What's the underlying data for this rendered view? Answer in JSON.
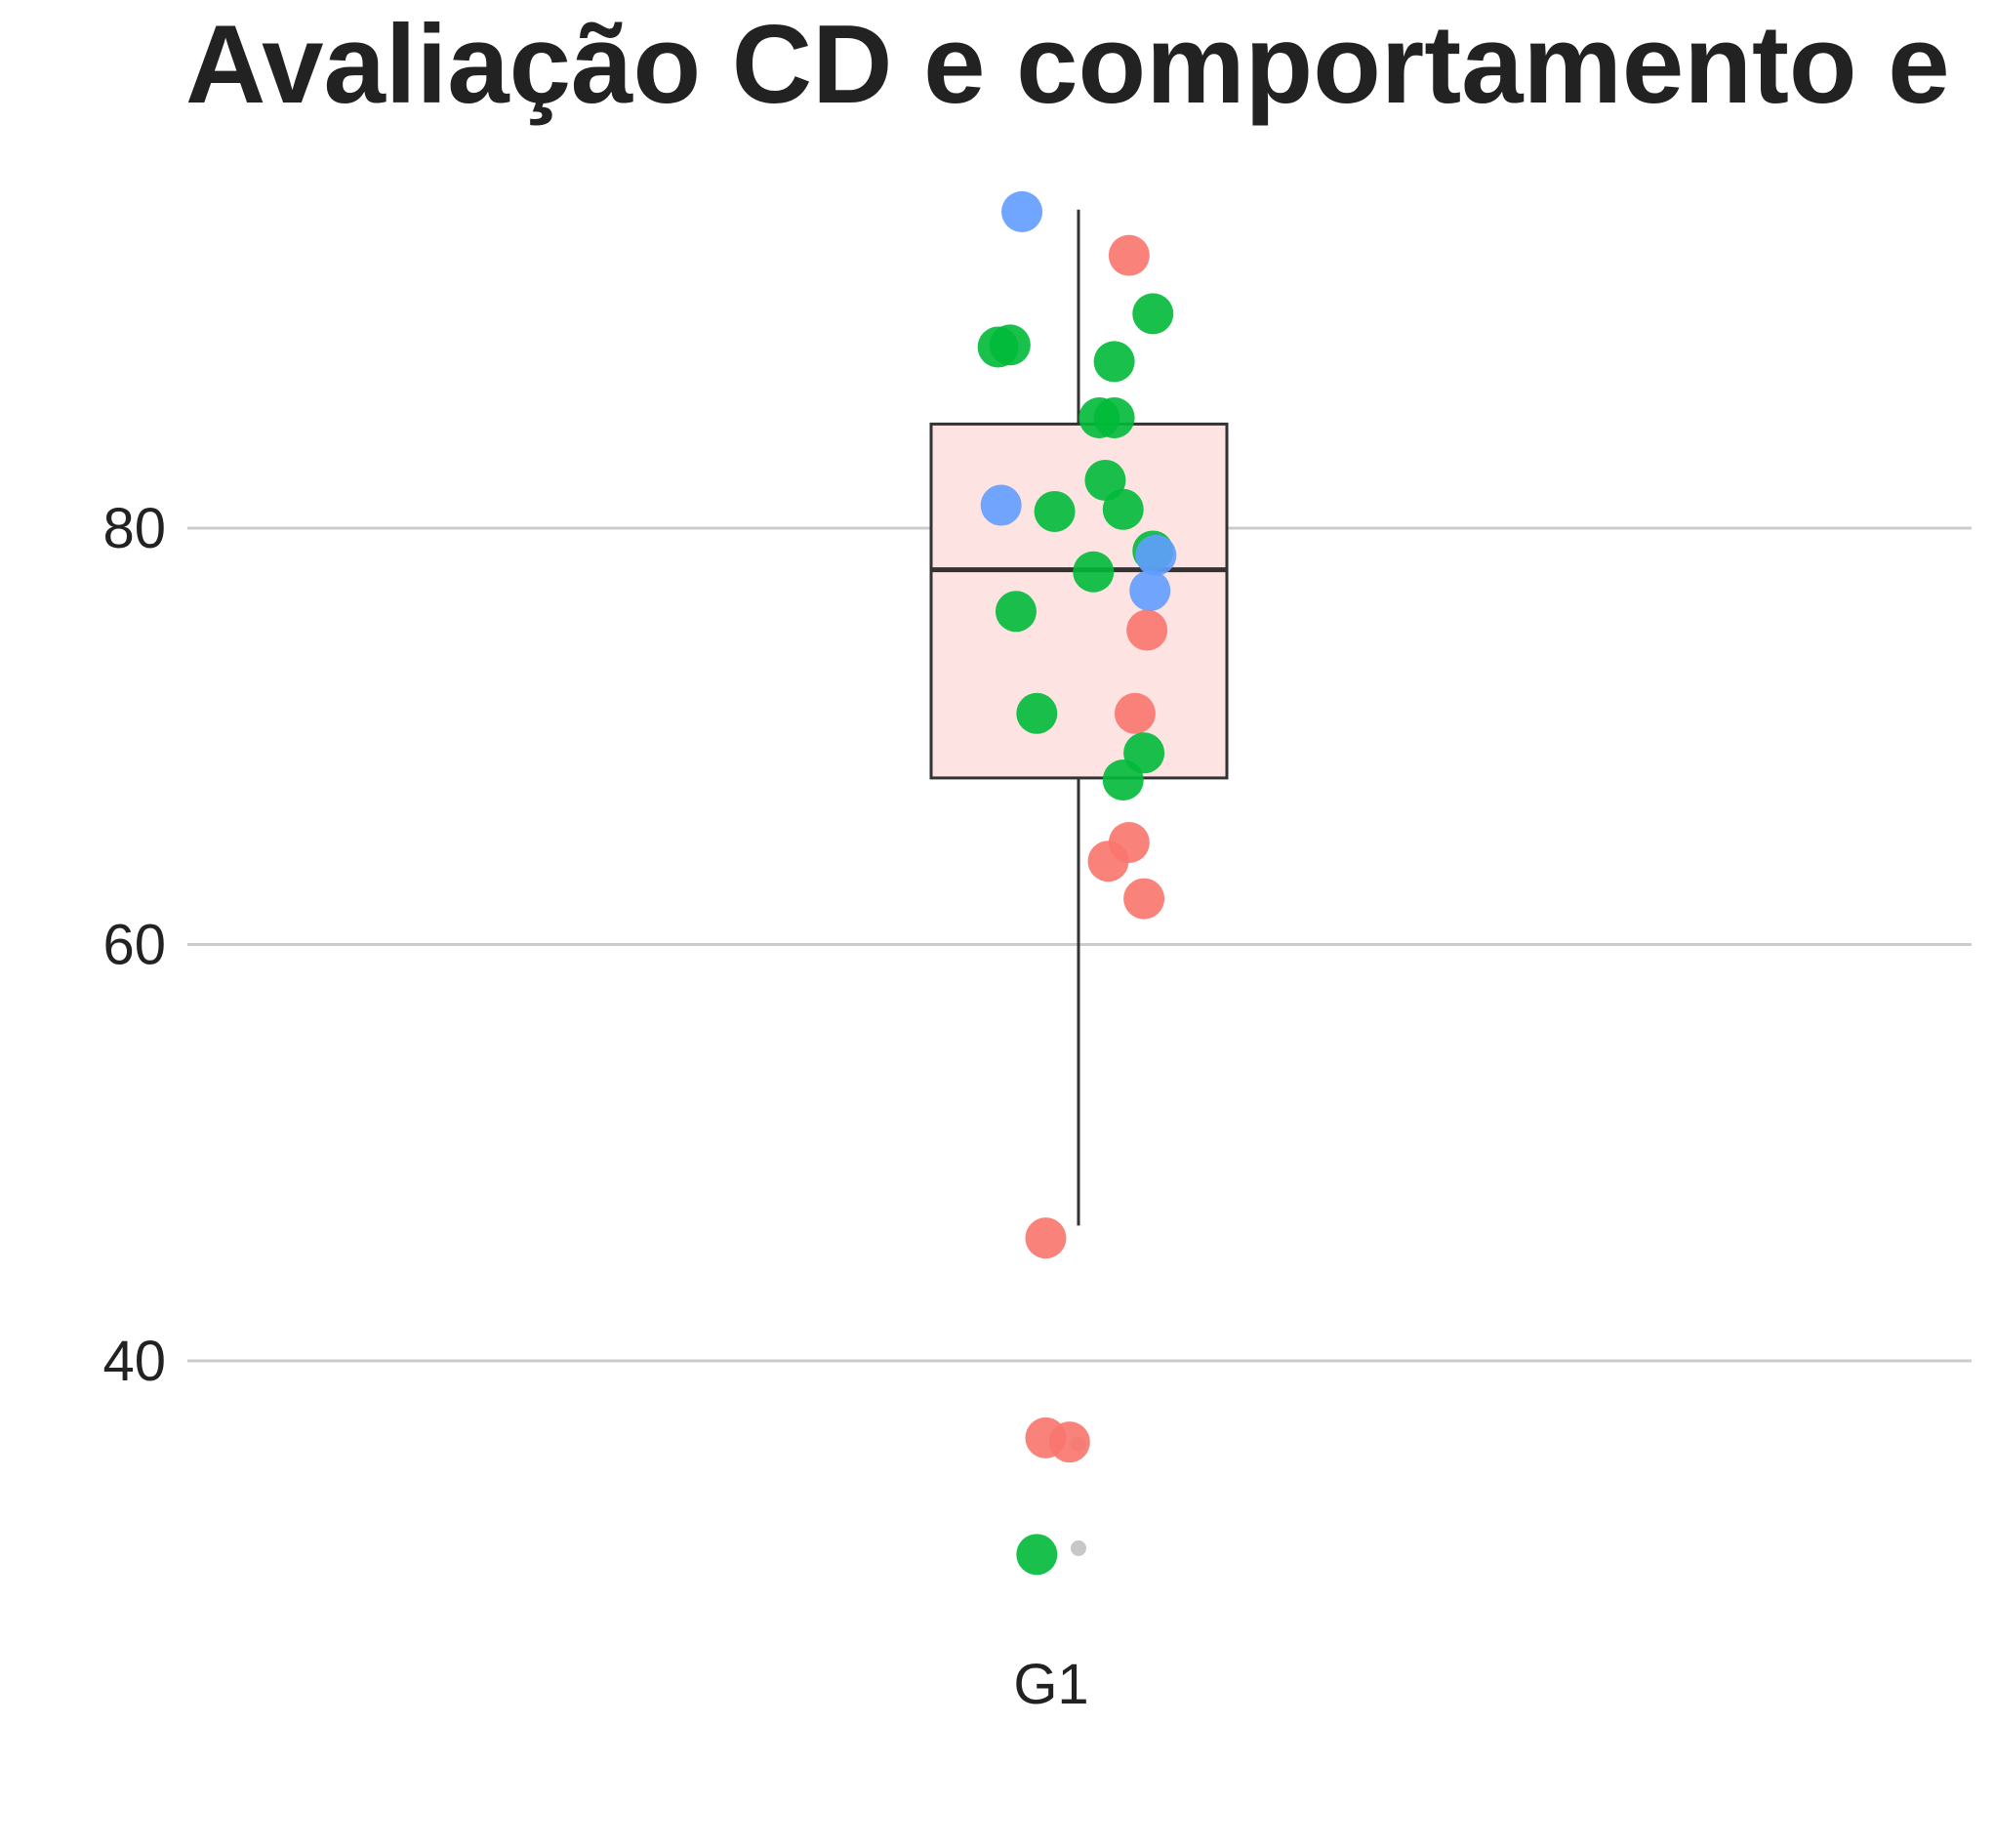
{
  "chart_data": {
    "type": "box",
    "title": "Avaliação CD e comportamento e",
    "xlabel": "",
    "ylabel": "",
    "categories": [
      "G1"
    ],
    "y_ticks": [
      40,
      60,
      80
    ],
    "ylim": [
      24.5,
      98.5
    ],
    "grid": "horizontal",
    "box": {
      "category": "G1",
      "q1": 68.0,
      "median": 78.0,
      "q3": 85.0,
      "whisker_low": 46.5,
      "whisker_high": 95.3,
      "outliers": [
        36.0,
        31.0
      ],
      "fill": "#fde4e3",
      "stroke": "#333333"
    },
    "points": [
      {
        "x": -0.19,
        "y": 95.2,
        "color": "#619cff"
      },
      {
        "x": 0.17,
        "y": 93.1,
        "color": "#f8766d"
      },
      {
        "x": 0.25,
        "y": 90.3,
        "color": "#00ba38"
      },
      {
        "x": -0.27,
        "y": 88.7,
        "color": "#00ba38"
      },
      {
        "x": -0.23,
        "y": 88.8,
        "color": "#00ba38"
      },
      {
        "x": 0.12,
        "y": 88.0,
        "color": "#00ba38"
      },
      {
        "x": 0.07,
        "y": 85.3,
        "color": "#00ba38"
      },
      {
        "x": 0.12,
        "y": 85.3,
        "color": "#00ba38"
      },
      {
        "x": 0.09,
        "y": 82.3,
        "color": "#00ba38"
      },
      {
        "x": -0.26,
        "y": 81.1,
        "color": "#619cff"
      },
      {
        "x": -0.08,
        "y": 80.8,
        "color": "#00ba38"
      },
      {
        "x": 0.15,
        "y": 80.9,
        "color": "#00ba38"
      },
      {
        "x": 0.25,
        "y": 78.9,
        "color": "#00ba38"
      },
      {
        "x": 0.26,
        "y": 78.7,
        "color": "#619cff"
      },
      {
        "x": 0.05,
        "y": 77.9,
        "color": "#00ba38"
      },
      {
        "x": 0.24,
        "y": 77.0,
        "color": "#619cff"
      },
      {
        "x": -0.21,
        "y": 76.0,
        "color": "#00ba38"
      },
      {
        "x": 0.23,
        "y": 75.1,
        "color": "#f8766d"
      },
      {
        "x": -0.14,
        "y": 71.1,
        "color": "#00ba38"
      },
      {
        "x": 0.19,
        "y": 71.1,
        "color": "#f8766d"
      },
      {
        "x": 0.22,
        "y": 69.2,
        "color": "#00ba38"
      },
      {
        "x": 0.15,
        "y": 67.9,
        "color": "#00ba38"
      },
      {
        "x": 0.17,
        "y": 64.9,
        "color": "#f8766d"
      },
      {
        "x": 0.1,
        "y": 64.0,
        "color": "#f8766d"
      },
      {
        "x": 0.22,
        "y": 62.2,
        "color": "#f8766d"
      },
      {
        "x": -0.11,
        "y": 45.9,
        "color": "#f8766d"
      },
      {
        "x": -0.11,
        "y": 36.3,
        "color": "#f8766d"
      },
      {
        "x": -0.03,
        "y": 36.1,
        "color": "#f8766d"
      },
      {
        "x": -0.14,
        "y": 30.7,
        "color": "#00ba38"
      }
    ]
  }
}
